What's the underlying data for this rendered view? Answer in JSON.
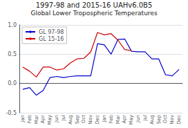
{
  "chart_data": {
    "type": "line",
    "title": "1997-98 and 2015-16 UAHv6.0B5",
    "subtitle": "Global Lower Tropospheric Temperatures",
    "categories": [
      "Jan",
      "Feb",
      "Mar",
      "Apr",
      "May",
      "Jun",
      "Jul",
      "Aug",
      "Sep",
      "Oct",
      "Nov",
      "Dec",
      "Jan",
      "Feb",
      "Mar",
      "Apr",
      "May",
      "Jun",
      "Jul",
      "Aug",
      "Sep",
      "Oct",
      "Nov",
      "Dec"
    ],
    "series": [
      {
        "name": "GL 97-98",
        "color": "#0000cc",
        "values": [
          -0.1,
          -0.07,
          -0.2,
          -0.12,
          0.1,
          0.12,
          0.1,
          0.12,
          0.13,
          0.13,
          0.13,
          0.68,
          0.66,
          0.5,
          0.75,
          0.76,
          0.55,
          0.54,
          0.54,
          0.42,
          0.42,
          0.15,
          0.13,
          0.24
        ]
      },
      {
        "name": "GL 15-16",
        "color": "#cc0000",
        "values": [
          0.28,
          0.21,
          0.11,
          0.28,
          0.28,
          0.23,
          0.25,
          0.35,
          0.42,
          0.43,
          0.54,
          0.87,
          0.83,
          0.85,
          0.74,
          0.58,
          0.56,
          null,
          null,
          null,
          null,
          null,
          null,
          null
        ]
      }
    ],
    "ylim": [
      -0.5,
      1.0
    ],
    "yticks": [
      -0.5,
      {
        "value": 0,
        "label": "0.0"
      },
      0.5,
      {
        "value": 1,
        "label": "1.0"
      }
    ],
    "grid": true,
    "legend": "upper left"
  }
}
